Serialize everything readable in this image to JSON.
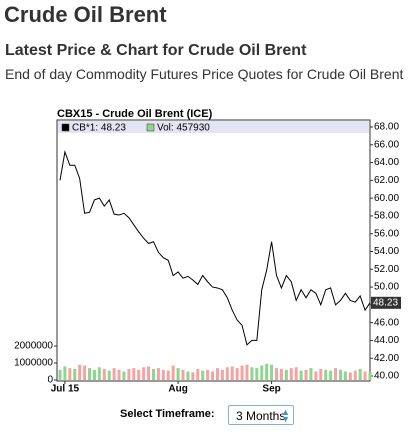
{
  "header": {
    "title": "Crude Oil Brent",
    "subtitle": "Latest Price & Chart for Crude Oil Brent",
    "description": "End of day Commodity Futures Price Quotes for Crude Oil Brent"
  },
  "controls": {
    "label": "Select Timeframe:",
    "timeframe": "3 Months"
  },
  "chart_data": {
    "type": "line",
    "title": "CBX15 - Crude Oil Brent (ICE)",
    "categories": [
      null,
      "Jul 15",
      null,
      null,
      null,
      null,
      null,
      null,
      null,
      null,
      null,
      null,
      null,
      null,
      null,
      null,
      null,
      null,
      null,
      null,
      null,
      null,
      null,
      null,
      "Aug",
      null,
      null,
      null,
      null,
      null,
      null,
      null,
      null,
      null,
      null,
      null,
      null,
      null,
      null,
      null,
      null,
      null,
      null,
      "Sep",
      null,
      null,
      null,
      null,
      null,
      null,
      null,
      null,
      null,
      null,
      null,
      null,
      null,
      null,
      null,
      null,
      null,
      null,
      null,
      null
    ],
    "series": [
      {
        "name": "CB*1: 48.23",
        "color": "#000000",
        "values": [
          62.0,
          65.2,
          63.7,
          63.7,
          62.2,
          58.3,
          58.4,
          59.8,
          60.0,
          59.1,
          59.8,
          58.2,
          58.1,
          58.3,
          57.8,
          57.0,
          56.2,
          55.5,
          54.9,
          55.1,
          53.9,
          53.3,
          53.0,
          51.3,
          51.7,
          51.0,
          51.2,
          50.8,
          50.3,
          51.3,
          50.6,
          50.0,
          49.9,
          49.7,
          48.8,
          47.4,
          46.3,
          45.7,
          43.5,
          44.0,
          44.0,
          49.7,
          51.9,
          55.1,
          51.3,
          49.9,
          51.3,
          50.6,
          48.5,
          49.7,
          48.8,
          49.7,
          49.3,
          48.0,
          49.7,
          49.9,
          48.0,
          48.5,
          49.3,
          48.5,
          48.3,
          49.0,
          47.4,
          48.23
        ]
      },
      {
        "name": "Vol: 457930",
        "type": "bar",
        "axis": "y2",
        "color": "#8fd48f",
        "down_color": "#f4a3a3",
        "values": [
          600000,
          800000,
          700000,
          650000,
          900000,
          850000,
          700000,
          600000,
          750000,
          650000,
          550000,
          700000,
          600000,
          500000,
          650000,
          700000,
          600000,
          750000,
          800000,
          650000,
          700000,
          600000,
          550000,
          850000,
          700000,
          600000,
          500000,
          450000,
          650000,
          550000,
          600000,
          500000,
          700000,
          600000,
          750000,
          800000,
          700000,
          850000,
          900000,
          750000,
          700000,
          850000,
          950000,
          900000,
          700000,
          650000,
          600000,
          700000,
          750000,
          550000,
          600000,
          700000,
          500000,
          650000,
          600000,
          550000,
          700000,
          600000,
          500000,
          450000,
          550000,
          650000,
          500000,
          457930
        ]
      }
    ],
    "ylim": [
      40,
      68
    ],
    "yticks": [
      {
        "value": 40,
        "label": "40.00"
      },
      {
        "value": 42,
        "label": "42.00"
      },
      {
        "value": 44,
        "label": "44.00"
      },
      {
        "value": 46,
        "label": "46.00"
      },
      {
        "value": 48,
        "label": "48.00"
      },
      {
        "value": 50,
        "label": "50.00"
      },
      {
        "value": 52,
        "label": "52.00"
      },
      {
        "value": 54,
        "label": "54.00"
      },
      {
        "value": 56,
        "label": "56.00"
      },
      {
        "value": 58,
        "label": "58.00"
      },
      {
        "value": 60,
        "label": "60.00"
      },
      {
        "value": 62,
        "label": "62.00"
      },
      {
        "value": 64,
        "label": "64.00"
      },
      {
        "value": 66,
        "label": "66.00"
      },
      {
        "value": 68,
        "label": "68.00"
      }
    ],
    "y2lim": [
      0,
      2000000
    ],
    "y2ticks": [
      0,
      1000000,
      2000000
    ],
    "grid": false
  }
}
